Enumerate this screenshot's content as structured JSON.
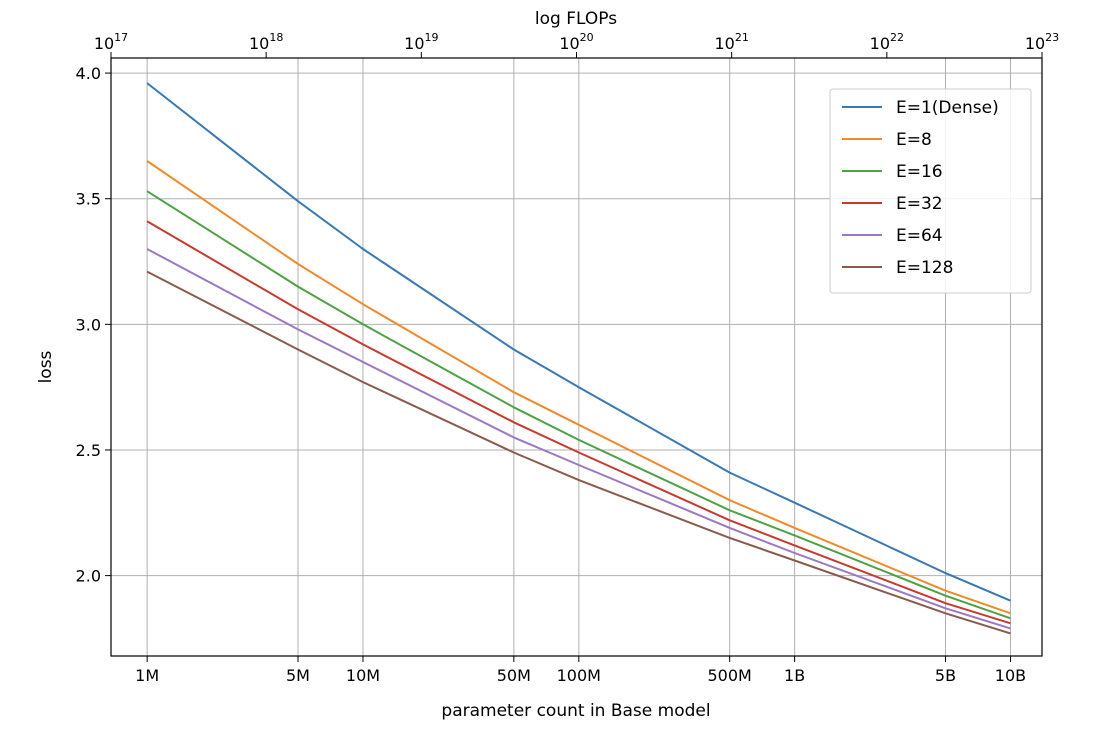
{
  "chart_data": {
    "type": "line",
    "xlabel": "parameter count in Base model",
    "ylabel": "loss",
    "x2label": "log FLOPs",
    "x_scale": "log",
    "xlim_params": [
      680000,
      14000000000
    ],
    "ylim": [
      1.68,
      4.06
    ],
    "x_ticks": [
      {
        "value": 1000000,
        "label": "1M"
      },
      {
        "value": 5000000,
        "label": "5M"
      },
      {
        "value": 10000000,
        "label": "10M"
      },
      {
        "value": 50000000,
        "label": "50M"
      },
      {
        "value": 100000000,
        "label": "100M"
      },
      {
        "value": 500000000,
        "label": "500M"
      },
      {
        "value": 1000000000,
        "label": "1B"
      },
      {
        "value": 5000000000,
        "label": "5B"
      },
      {
        "value": 10000000000,
        "label": "10B"
      }
    ],
    "x2_ticks": [
      {
        "base": "10",
        "exp": "17"
      },
      {
        "base": "10",
        "exp": "18"
      },
      {
        "base": "10",
        "exp": "19"
      },
      {
        "base": "10",
        "exp": "20"
      },
      {
        "base": "10",
        "exp": "21"
      },
      {
        "base": "10",
        "exp": "22"
      },
      {
        "base": "10",
        "exp": "23"
      }
    ],
    "x2_range_log10": [
      17,
      23
    ],
    "y_ticks": [
      {
        "value": 2.0,
        "label": "2.0"
      },
      {
        "value": 2.5,
        "label": "2.5"
      },
      {
        "value": 3.0,
        "label": "3.0"
      },
      {
        "value": 3.5,
        "label": "3.5"
      },
      {
        "value": 4.0,
        "label": "4.0"
      }
    ],
    "grid": true,
    "legend_position": "top-right",
    "x": [
      1000000,
      5000000,
      10000000,
      50000000,
      100000000,
      500000000,
      1000000000,
      5000000000,
      10000000000
    ],
    "series": [
      {
        "name": "E=1(Dense)",
        "color": "#3a78b4",
        "values": [
          3.96,
          3.49,
          3.3,
          2.9,
          2.75,
          2.41,
          2.29,
          2.01,
          1.9
        ]
      },
      {
        "name": "E=8",
        "color": "#f18a2a",
        "values": [
          3.65,
          3.24,
          3.08,
          2.73,
          2.6,
          2.3,
          2.19,
          1.94,
          1.85
        ]
      },
      {
        "name": "E=16",
        "color": "#4da245",
        "values": [
          3.53,
          3.15,
          3.0,
          2.67,
          2.54,
          2.26,
          2.16,
          1.92,
          1.83
        ]
      },
      {
        "name": "E=32",
        "color": "#c73a2f",
        "values": [
          3.41,
          3.06,
          2.92,
          2.61,
          2.49,
          2.22,
          2.12,
          1.89,
          1.81
        ]
      },
      {
        "name": "E=64",
        "color": "#9a78c4",
        "values": [
          3.3,
          2.98,
          2.85,
          2.55,
          2.44,
          2.19,
          2.09,
          1.87,
          1.79
        ]
      },
      {
        "name": "E=128",
        "color": "#8a5b4c",
        "values": [
          3.21,
          2.9,
          2.77,
          2.49,
          2.38,
          2.15,
          2.06,
          1.85,
          1.77
        ]
      }
    ]
  }
}
